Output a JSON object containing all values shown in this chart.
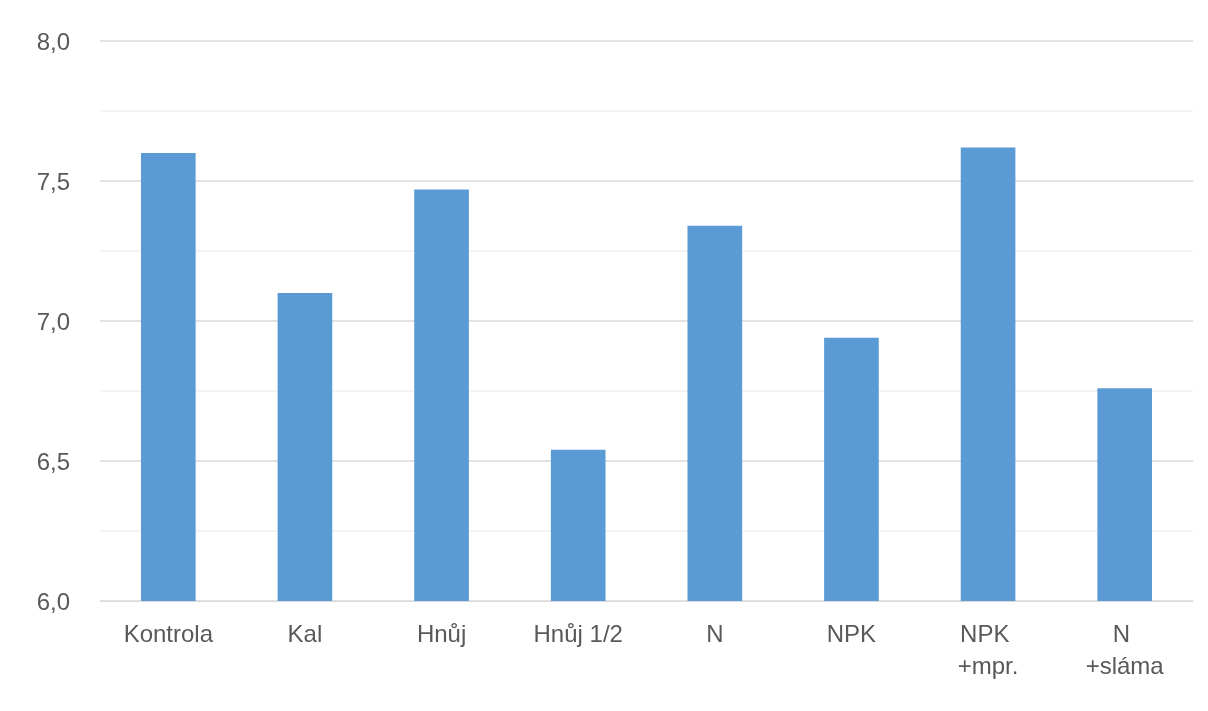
{
  "chart_data": {
    "type": "bar",
    "categories": [
      "Kontrola",
      "Kal",
      "Hnůj",
      "Hnůj 1/2",
      "N",
      "NPK",
      "NPK +mpr.",
      "N +sláma"
    ],
    "values": [
      7.6,
      7.1,
      7.47,
      6.54,
      7.34,
      6.94,
      7.62,
      6.76
    ],
    "color": "#5b9bd5",
    "ylim": [
      6,
      8
    ],
    "yticks": [
      {
        "value": 6,
        "label": "6,0"
      },
      {
        "value": 6.25,
        "label": null
      },
      {
        "value": 6.5,
        "label": "6,5"
      },
      {
        "value": 6.75,
        "label": null
      },
      {
        "value": 7,
        "label": "7,0"
      },
      {
        "value": 7.25,
        "label": null
      },
      {
        "value": 7.5,
        "label": "7,5"
      },
      {
        "value": 7.75,
        "label": null
      },
      {
        "value": 8,
        "label": "8,0"
      }
    ],
    "grid": "y"
  }
}
